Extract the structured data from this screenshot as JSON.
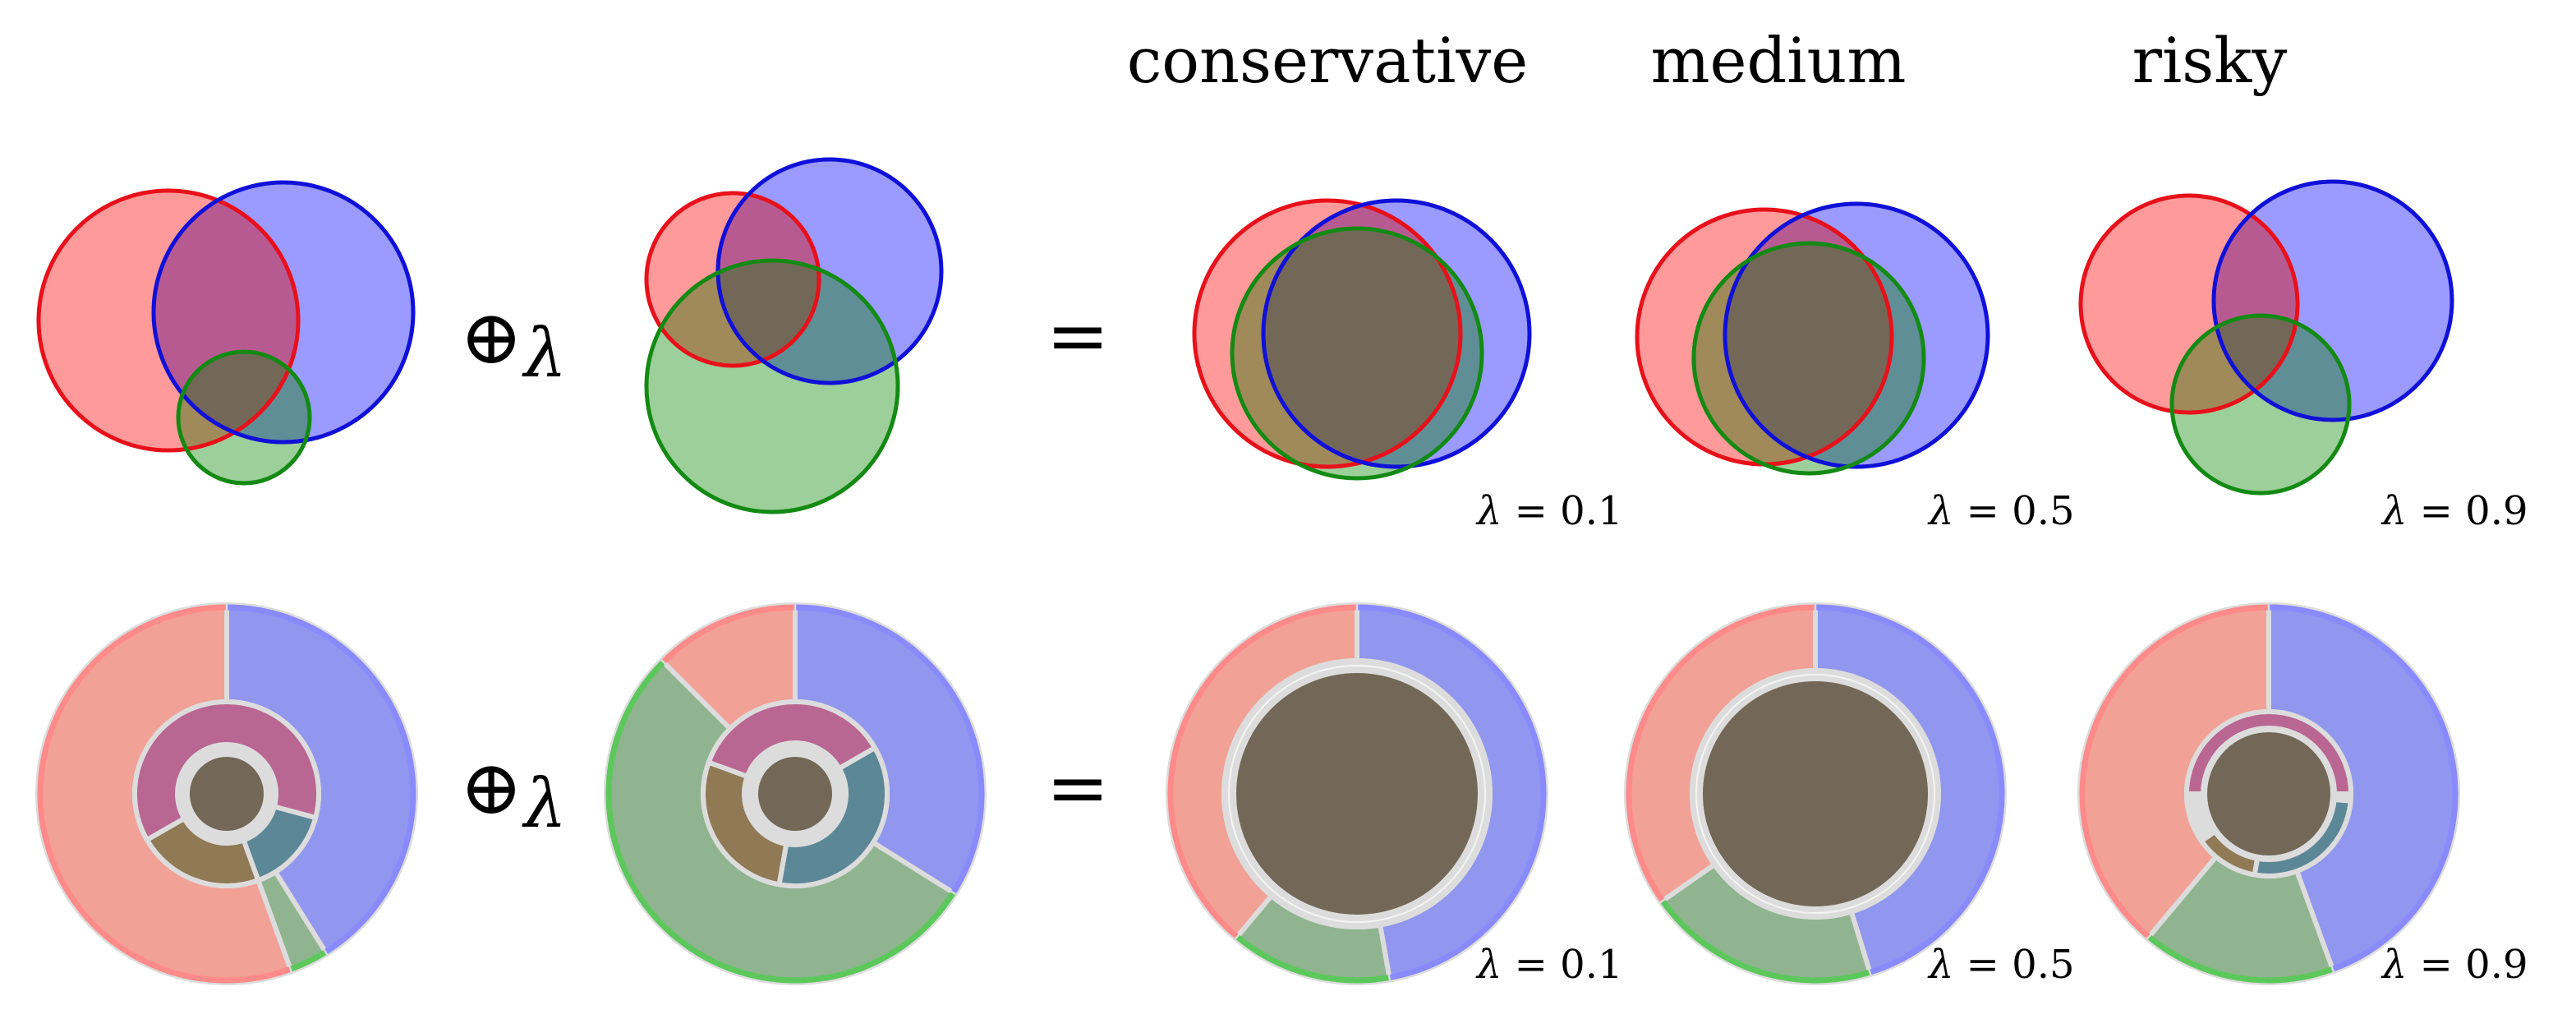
{
  "headers": {
    "conservative": "conservative",
    "medium": "medium",
    "risky": "risky"
  },
  "operators": {
    "oplus": "⊕",
    "lambda": "λ",
    "equals": "="
  },
  "lambda_labels": [
    {
      "symbol": "λ",
      "text": " = 0.1"
    },
    {
      "symbol": "λ",
      "text": " = 0.5"
    },
    {
      "symbol": "λ",
      "text": " = 0.9"
    }
  ],
  "colors": {
    "red_fill": "#ff9a9a",
    "red_stroke": "#e8101a",
    "blue_fill": "#9a9aff",
    "blue_stroke": "#1010d8",
    "green_fill": "#9dcf9a",
    "green_stroke": "#138a13",
    "rg_overlap": "#a08a5a",
    "rb_overlap": "#b85a92",
    "bg_overlap": "#5f8e96",
    "all_overlap": "#736857",
    "ring_red": "#f2a196",
    "ring_red_edge": "#ff8a8a",
    "ring_blue": "#9196ee",
    "ring_blue_edge": "#8a8aff",
    "ring_green": "#8fb48f",
    "ring_green_edge": "#5cc85c",
    "ring_rb": "#b96693",
    "ring_rg": "#8f7a55",
    "ring_bg": "#5c8796",
    "ring_center": "#736857",
    "separator": "#dcdcdc"
  }
}
